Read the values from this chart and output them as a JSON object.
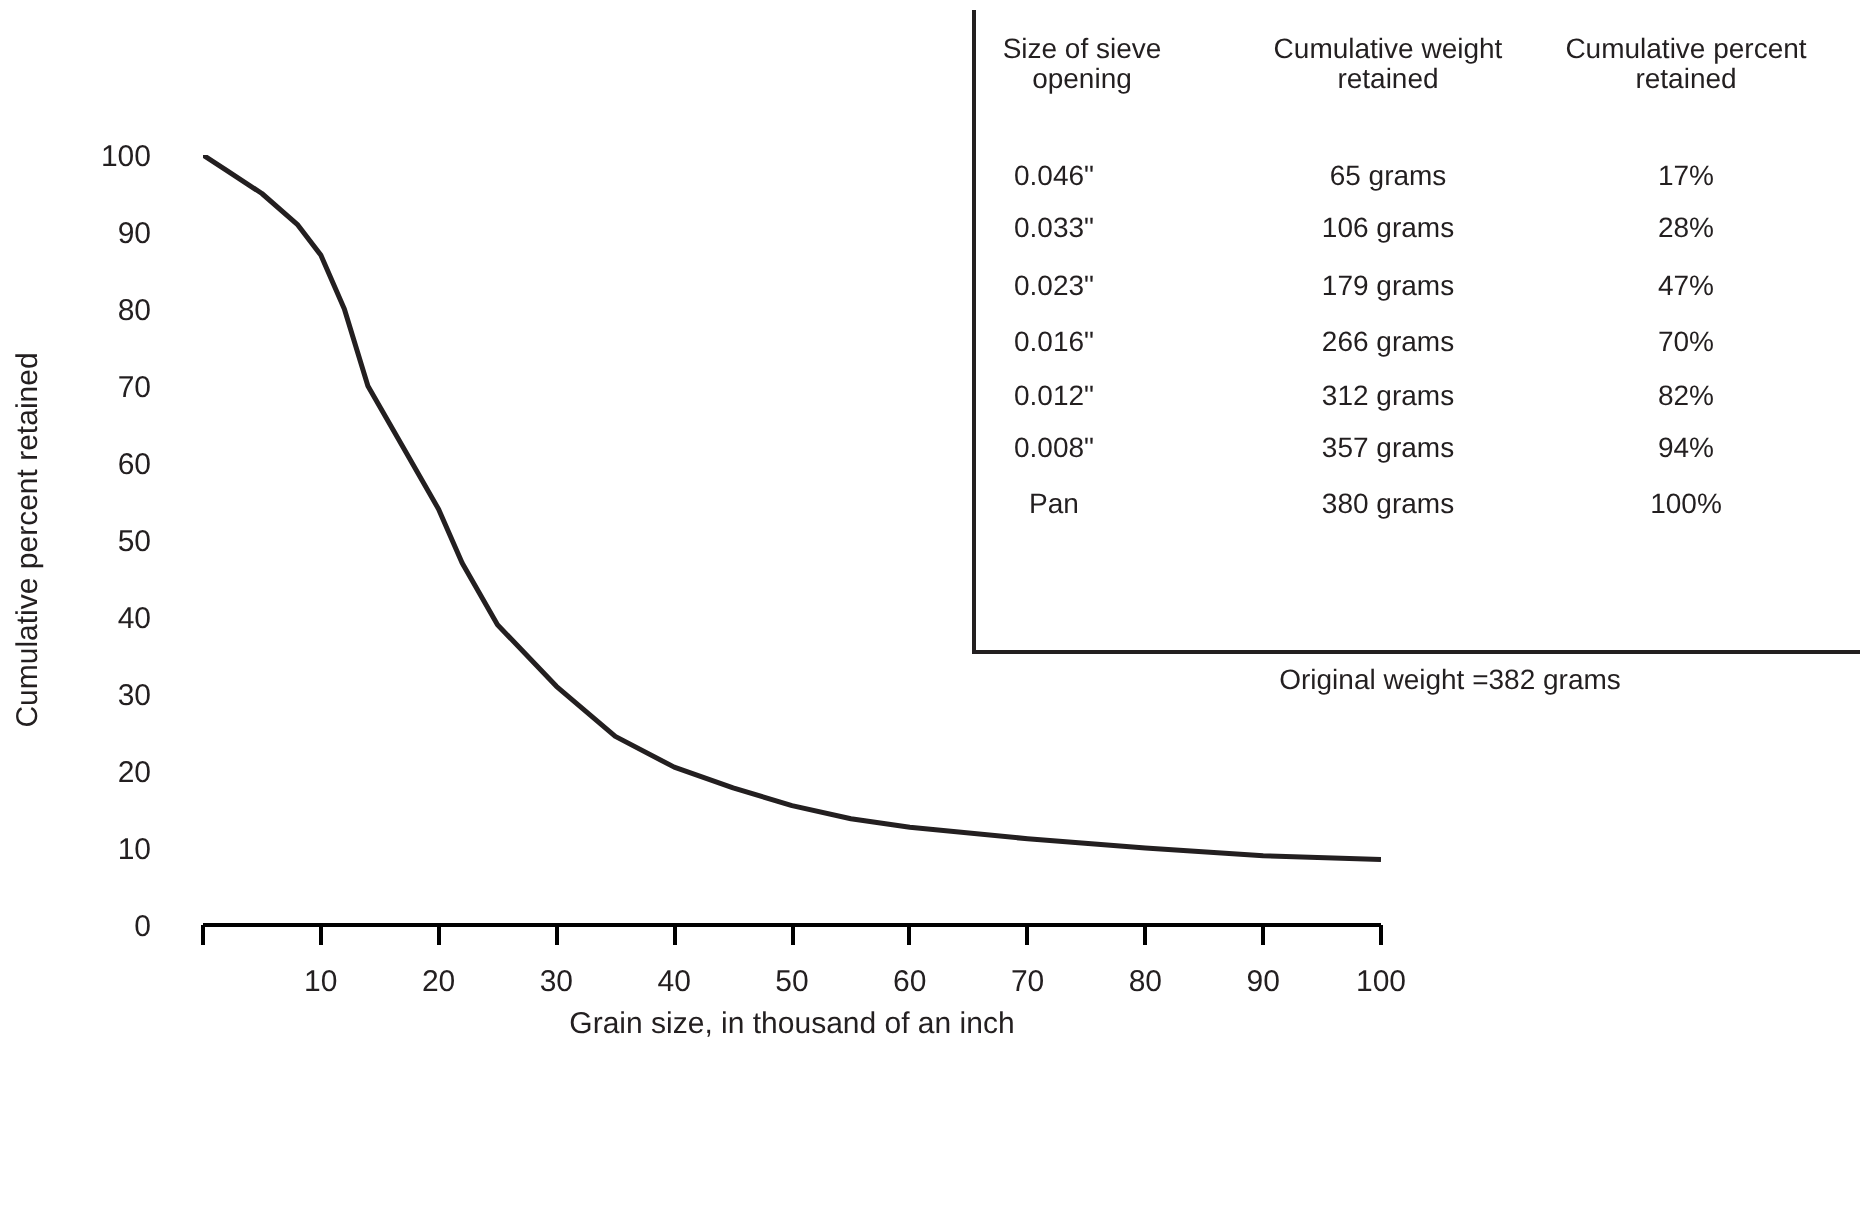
{
  "chart_data": {
    "type": "line",
    "xlabel": "Grain size, in thousand of an inch",
    "ylabel": "Cumulative percent retained",
    "x": [
      0,
      2,
      5,
      8,
      10,
      12,
      14,
      17,
      20,
      22,
      25,
      30,
      35,
      40,
      45,
      50,
      55,
      60,
      70,
      80,
      90,
      100
    ],
    "series": [
      {
        "color": "#231f20",
        "values": [
          100,
          98,
          95,
          91,
          87,
          80,
          70,
          62,
          54,
          47,
          39,
          31,
          24.5,
          20.5,
          17.8,
          15.5,
          13.8,
          12.7,
          11.2,
          10,
          9,
          8.5
        ]
      }
    ],
    "xlim": [
      0,
      100
    ],
    "ylim": [
      0,
      100
    ],
    "xticks": [
      {
        "value": 0,
        "label": null
      },
      10,
      20,
      30,
      40,
      50,
      60,
      70,
      80,
      90,
      100
    ],
    "yticks": [
      0,
      10,
      20,
      30,
      40,
      50,
      60,
      70,
      80,
      90,
      100
    ],
    "grid": false,
    "marker": "none",
    "line_style": "solid",
    "annotations": [
      "Size of sieve\nopening",
      "Cumulative weight\nretained",
      "Cumulative percent\nretained",
      "0.046\"",
      "65 grams",
      "17%",
      "0.033\"",
      "106 grams",
      "28%",
      "0.023\"",
      "179 grams",
      "47%",
      "0.016\"",
      "266 grams",
      "70%",
      "0.012\"",
      "312 grams",
      "82%",
      "0.008\"",
      "357 grams",
      "94%",
      "Pan",
      "380 grams",
      "100%",
      "Original weight =382 grams"
    ]
  }
}
